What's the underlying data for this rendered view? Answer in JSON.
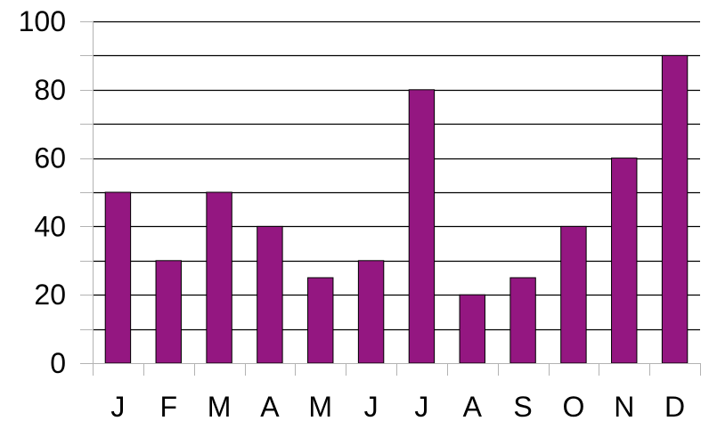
{
  "chart_data": {
    "type": "bar",
    "title": "",
    "xlabel": "",
    "ylabel": "",
    "categories": [
      "J",
      "F",
      "M",
      "A",
      "M",
      "J",
      "J",
      "A",
      "S",
      "O",
      "N",
      "D"
    ],
    "values": [
      50,
      30,
      50,
      40,
      25,
      30,
      80,
      20,
      25,
      40,
      60,
      90
    ],
    "ylim": [
      0,
      100
    ],
    "yticks": [
      0,
      20,
      40,
      60,
      80,
      100
    ],
    "yticks_labels": [
      "0",
      "20",
      "40",
      "60",
      "80",
      "100"
    ],
    "minor_gridlines_every": 10,
    "grid": true,
    "legend": "none",
    "colors": {
      "bar": "#941781",
      "bar_stroke": "#000000",
      "grid": "#000000",
      "axis": "#b3b3b3"
    }
  }
}
